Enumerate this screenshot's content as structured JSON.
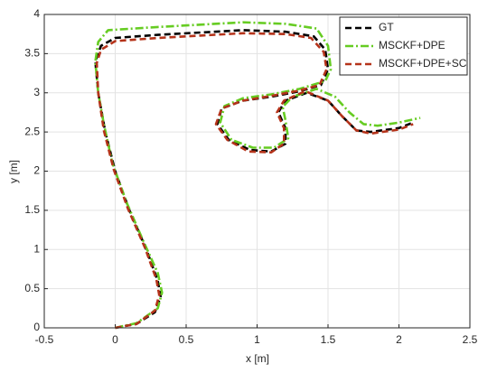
{
  "chart_data": {
    "type": "line",
    "xlabel": "x [m]",
    "ylabel": "y [m]",
    "xlim": [
      -0.5,
      2.5
    ],
    "xticks": [
      -0.5,
      0,
      0.5,
      1,
      1.5,
      2,
      2.5
    ],
    "ylim": [
      0,
      4
    ],
    "yticks": [
      0,
      0.5,
      1,
      1.5,
      2,
      2.5,
      3,
      3.5,
      4
    ],
    "grid": true,
    "legend": "upper-right",
    "series": [
      {
        "name": "GT",
        "color": "#000000",
        "x": [
          0,
          0.15,
          0.28,
          0.32,
          0.3,
          0.22,
          0.1,
          0,
          -0.07,
          -0.12,
          -0.14,
          -0.1,
          0,
          0.3,
          0.6,
          0.9,
          1.2,
          1.4,
          1.48,
          1.5,
          1.45,
          1.3,
          1.1,
          0.9,
          0.75,
          0.72,
          0.8,
          0.95,
          1.1,
          1.2,
          1.2,
          1.15,
          1.2,
          1.35,
          1.5,
          1.6,
          1.7,
          1.8,
          2.0,
          2.1
        ],
        "values": [
          0,
          0.05,
          0.2,
          0.4,
          0.6,
          1.0,
          1.5,
          2.0,
          2.5,
          3.0,
          3.4,
          3.6,
          3.7,
          3.74,
          3.77,
          3.8,
          3.78,
          3.72,
          3.55,
          3.3,
          3.1,
          3.02,
          2.95,
          2.9,
          2.8,
          2.6,
          2.4,
          2.27,
          2.25,
          2.35,
          2.55,
          2.75,
          2.9,
          3.0,
          2.9,
          2.7,
          2.52,
          2.5,
          2.55,
          2.62
        ]
      },
      {
        "name": "MSCKF+DPE",
        "color": "#66cc22",
        "x": [
          0,
          0.15,
          0.3,
          0.33,
          0.3,
          0.2,
          0.08,
          -0.02,
          -0.08,
          -0.12,
          -0.14,
          -0.12,
          -0.05,
          0.3,
          0.6,
          0.9,
          1.2,
          1.42,
          1.5,
          1.52,
          1.48,
          1.3,
          1.1,
          0.9,
          0.77,
          0.74,
          0.82,
          0.97,
          1.12,
          1.22,
          1.2,
          1.18,
          1.25,
          1.42,
          1.55,
          1.65,
          1.75,
          1.85,
          2.0,
          2.15
        ],
        "values": [
          0,
          0.06,
          0.25,
          0.45,
          0.7,
          1.1,
          1.6,
          2.1,
          2.6,
          3.0,
          3.4,
          3.65,
          3.8,
          3.84,
          3.87,
          3.9,
          3.88,
          3.82,
          3.6,
          3.3,
          3.15,
          3.05,
          2.98,
          2.93,
          2.83,
          2.62,
          2.4,
          2.3,
          2.3,
          2.42,
          2.65,
          2.82,
          2.95,
          3.05,
          2.95,
          2.75,
          2.6,
          2.58,
          2.62,
          2.68
        ]
      },
      {
        "name": "MSCKF+DPE+SC",
        "color": "#b5331a",
        "x": [
          0,
          0.15,
          0.28,
          0.31,
          0.29,
          0.21,
          0.09,
          -0.01,
          -0.08,
          -0.12,
          -0.13,
          -0.1,
          0,
          0.3,
          0.6,
          0.9,
          1.2,
          1.38,
          1.47,
          1.49,
          1.44,
          1.3,
          1.1,
          0.9,
          0.75,
          0.71,
          0.79,
          0.94,
          1.1,
          1.19,
          1.19,
          1.14,
          1.19,
          1.34,
          1.5,
          1.6,
          1.7,
          1.8,
          2.0,
          2.1
        ],
        "values": [
          0,
          0.05,
          0.22,
          0.42,
          0.62,
          1.02,
          1.52,
          2.02,
          2.52,
          3.0,
          3.38,
          3.55,
          3.66,
          3.7,
          3.73,
          3.76,
          3.75,
          3.7,
          3.52,
          3.3,
          3.1,
          3.03,
          2.96,
          2.9,
          2.8,
          2.6,
          2.4,
          2.25,
          2.24,
          2.35,
          2.55,
          2.75,
          2.9,
          3.02,
          2.9,
          2.7,
          2.52,
          2.48,
          2.53,
          2.6
        ]
      }
    ]
  }
}
